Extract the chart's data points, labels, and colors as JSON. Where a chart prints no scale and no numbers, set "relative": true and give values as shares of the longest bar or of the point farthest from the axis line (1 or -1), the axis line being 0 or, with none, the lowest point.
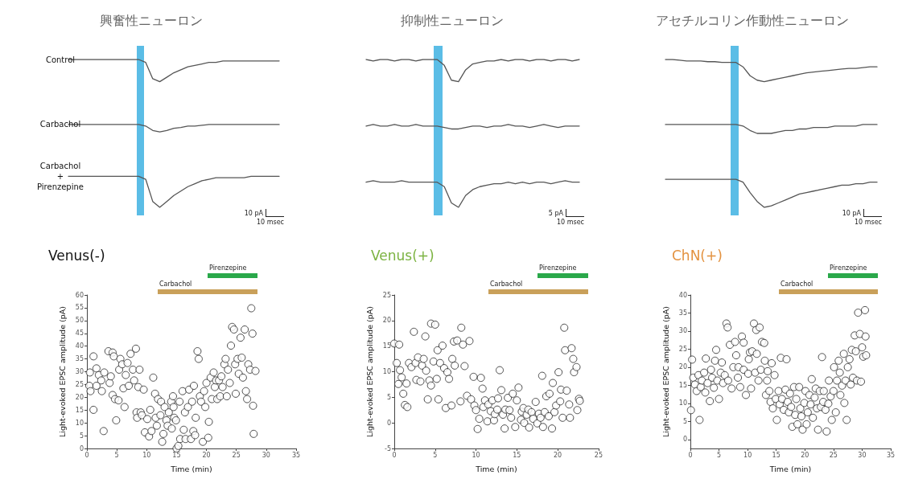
{
  "chart_data": [
    {
      "type": "line",
      "title": "興奮性ニューロン",
      "relative": true,
      "marker": "none",
      "categories": [
        null,
        null,
        null,
        null,
        null,
        null,
        null,
        null,
        null,
        null,
        null,
        null,
        null,
        null,
        null,
        null,
        null,
        null,
        null,
        null,
        null,
        null,
        null,
        null,
        null,
        null,
        null,
        null,
        null,
        null,
        null
      ],
      "annotations": [
        "10 pA",
        "10 msec"
      ],
      "series": [
        {
          "name": "Control",
          "color": "#555555",
          "values": [
            1,
            1,
            1,
            1,
            1,
            1,
            1,
            1,
            1,
            1,
            1,
            0.98,
            0.87,
            0.85,
            0.88,
            0.91,
            0.93,
            0.95,
            0.96,
            0.97,
            0.98,
            0.98,
            0.99,
            0.99,
            0.99,
            0.99,
            0.99,
            0.99,
            0.99,
            0.99,
            0.99
          ]
        },
        {
          "name": "Carbachol",
          "color": "#555555",
          "values": [
            0.56,
            0.56,
            0.56,
            0.56,
            0.56,
            0.56,
            0.56,
            0.56,
            0.56,
            0.56,
            0.56,
            0.55,
            0.52,
            0.51,
            0.52,
            0.535,
            0.54,
            0.55,
            0.55,
            0.555,
            0.56,
            0.56,
            0.56,
            0.56,
            0.56,
            0.56,
            0.56,
            0.56,
            0.56,
            0.56,
            0.56
          ]
        },
        {
          "name": "Carbachol + Pirenzepine",
          "color": "#555555",
          "values": [
            0.21,
            0.21,
            0.21,
            0.21,
            0.21,
            0.21,
            0.21,
            0.21,
            0.21,
            0.21,
            0.21,
            0.19,
            0.04,
            0,
            0.04,
            0.08,
            0.11,
            0.14,
            0.16,
            0.18,
            0.19,
            0.2,
            0.2,
            0.2,
            0.2,
            0.2,
            0.21,
            0.21,
            0.21,
            0.21,
            0.21
          ]
        }
      ]
    },
    {
      "type": "line",
      "title": "抑制性ニューロン",
      "relative": true,
      "marker": "none",
      "categories": [
        null,
        null,
        null,
        null,
        null,
        null,
        null,
        null,
        null,
        null,
        null,
        null,
        null,
        null,
        null,
        null,
        null,
        null,
        null,
        null,
        null,
        null,
        null,
        null,
        null,
        null,
        null,
        null,
        null,
        null,
        null
      ],
      "annotations": [
        "5 pA",
        "10 msec"
      ],
      "series": [
        {
          "color": "#555555",
          "values": [
            1,
            0.99,
            1,
            1,
            0.99,
            1,
            1,
            0.99,
            1,
            1,
            1,
            0.96,
            0.86,
            0.85,
            0.93,
            0.97,
            0.98,
            0.99,
            0.99,
            1,
            0.99,
            1,
            1,
            0.99,
            1,
            1,
            0.99,
            1,
            1,
            0.99,
            1
          ]
        },
        {
          "color": "#555555",
          "values": [
            0.55,
            0.56,
            0.55,
            0.55,
            0.56,
            0.55,
            0.55,
            0.56,
            0.55,
            0.55,
            0.55,
            0.54,
            0.53,
            0.53,
            0.54,
            0.55,
            0.55,
            0.54,
            0.55,
            0.55,
            0.56,
            0.55,
            0.55,
            0.54,
            0.55,
            0.56,
            0.55,
            0.54,
            0.55,
            0.55,
            0.55
          ]
        },
        {
          "color": "#555555",
          "values": [
            0.17,
            0.18,
            0.17,
            0.17,
            0.17,
            0.18,
            0.17,
            0.17,
            0.17,
            0.17,
            0.17,
            0.14,
            0.03,
            0,
            0.08,
            0.12,
            0.14,
            0.15,
            0.16,
            0.16,
            0.17,
            0.16,
            0.17,
            0.16,
            0.17,
            0.17,
            0.16,
            0.17,
            0.18,
            0.17,
            0.17
          ]
        }
      ]
    },
    {
      "type": "line",
      "title": "アセチルコリン作動性ニューロン",
      "relative": true,
      "marker": "none",
      "categories": [
        null,
        null,
        null,
        null,
        null,
        null,
        null,
        null,
        null,
        null,
        null,
        null,
        null,
        null,
        null,
        null,
        null,
        null,
        null,
        null,
        null,
        null,
        null,
        null,
        null,
        null,
        null,
        null,
        null,
        null,
        null
      ],
      "annotations": [
        "10 pA",
        "10 msec"
      ],
      "series": [
        {
          "color": "#555555",
          "values": [
            1,
            1,
            0.995,
            0.99,
            0.99,
            0.99,
            0.985,
            0.985,
            0.98,
            0.98,
            0.98,
            0.95,
            0.89,
            0.86,
            0.85,
            0.86,
            0.87,
            0.88,
            0.89,
            0.9,
            0.91,
            0.915,
            0.92,
            0.925,
            0.93,
            0.935,
            0.94,
            0.94,
            0.945,
            0.95,
            0.95
          ]
        },
        {
          "color": "#555555",
          "values": [
            0.56,
            0.56,
            0.56,
            0.56,
            0.56,
            0.56,
            0.56,
            0.56,
            0.56,
            0.56,
            0.56,
            0.55,
            0.52,
            0.5,
            0.5,
            0.5,
            0.51,
            0.52,
            0.52,
            0.53,
            0.53,
            0.54,
            0.54,
            0.54,
            0.55,
            0.55,
            0.55,
            0.55,
            0.56,
            0.56,
            0.56
          ]
        },
        {
          "color": "#555555",
          "values": [
            0.19,
            0.19,
            0.19,
            0.19,
            0.19,
            0.19,
            0.19,
            0.19,
            0.19,
            0.19,
            0.19,
            0.17,
            0.1,
            0.04,
            0,
            0.01,
            0.03,
            0.05,
            0.07,
            0.09,
            0.1,
            0.11,
            0.12,
            0.13,
            0.14,
            0.15,
            0.15,
            0.16,
            0.16,
            0.17,
            0.17
          ]
        }
      ]
    },
    {
      "type": "scatter",
      "title": "Venus(-)",
      "xlabel": "Time (min)",
      "ylabel": "Light-evoked EPSC amplitude (pA)",
      "marker": "circle",
      "xlim": [
        0,
        35
      ],
      "xticks": [
        0,
        5,
        10,
        15,
        20,
        25,
        30,
        35
      ],
      "ylim": [
        0,
        60
      ],
      "yticks": [
        0,
        5,
        10,
        15,
        20,
        25,
        30,
        35,
        40,
        45,
        50,
        55,
        60
      ],
      "annotations": [
        "Carbachol",
        "Pirenzepine"
      ],
      "series": [
        {
          "color": "#222222",
          "x": [
            0.5,
            0.4,
            0.6,
            1.1,
            1.1,
            1.6,
            1.6,
            2,
            2.4,
            2.5,
            2.8,
            2.9,
            3.6,
            3.8,
            4,
            4.3,
            4.3,
            4.5,
            4.7,
            4.9,
            5.4,
            5.3,
            5.6,
            5.9,
            6.1,
            6.3,
            6.5,
            6.8,
            7,
            7.3,
            7.7,
            7.9,
            8.2,
            8.3,
            8.4,
            8.6,
            8.8,
            9,
            9.2,
            9.5,
            9.7,
            10.1,
            10.4,
            10.6,
            10.8,
            11.1,
            11.4,
            11.5,
            11.7,
            11.9,
            12.3,
            12.4,
            12.6,
            12.8,
            13,
            13.3,
            13.5,
            13.7,
            14.1,
            14.2,
            14.4,
            14.5,
            14.6,
            14.9,
            15,
            15.3,
            15.5,
            15.6,
            16,
            16.2,
            16.4,
            16.5,
            16.9,
            17.1,
            17.4,
            17.6,
            17.8,
            17.9,
            18.1,
            18.2,
            18.5,
            18.7,
            18.9,
            19.1,
            19.4,
            19.6,
            19.8,
            20,
            20.3,
            20.4,
            20.7,
            20.9,
            21.2,
            21.4,
            21.6,
            21.8,
            22.1,
            22.3,
            22.5,
            22.7,
            23,
            23.2,
            23.4,
            23.6,
            23.9,
            24.1,
            24.3,
            24.6,
            24.8,
            24.9,
            25.2,
            25.4,
            25.7,
            25.9,
            26.1,
            26.4,
            26.6,
            26.8,
            27,
            27.3,
            27.5,
            27.7,
            27.8,
            27.9,
            28.2
          ],
          "values": [
            29.7,
            24.5,
            22.4,
            36,
            15.1,
            31.3,
            24.5,
            28.7,
            26.6,
            22.4,
            6.8,
            29.7,
            38,
            25.6,
            28.2,
            37.5,
            20.9,
            36,
            19.3,
            11,
            30.8,
            18.8,
            35,
            32.9,
            23.5,
            16.2,
            28.7,
            33.4,
            24.5,
            37,
            30.8,
            26.6,
            39,
            14.1,
            12,
            24,
            30.8,
            14.1,
            13,
            23,
            6.3,
            11.5,
            4.7,
            15.1,
            6.8,
            27.7,
            21.4,
            12,
            8.9,
            19.3,
            13,
            18.3,
            2.6,
            5.7,
            16.2,
            11,
            8.9,
            14.1,
            18.3,
            7.8,
            20.4,
            16.2,
            12,
            11,
            0,
            1,
            18.3,
            3.7,
            22.4,
            7.3,
            14.1,
            3.7,
            16.2,
            23,
            3.7,
            18.3,
            6.8,
            24.5,
            5.2,
            12,
            38,
            35,
            20.4,
            18.3,
            2.6,
            22.4,
            16.2,
            25.6,
            4.2,
            10.4,
            27.7,
            19.3,
            29.7,
            24,
            26.6,
            19.3,
            26.6,
            20.4,
            28.2,
            24,
            32.9,
            35,
            20.4,
            30.8,
            25.6,
            40.2,
            47.5,
            46.5,
            32.9,
            21.4,
            35,
            29.2,
            43.3,
            35.5,
            27.7,
            46.5,
            22.4,
            19.3,
            32.9,
            30.8,
            54.8,
            44.9,
            16.7,
            5.7,
            30.3
          ]
        }
      ]
    },
    {
      "type": "scatter",
      "title": "Venus(+)",
      "xlabel": "Time (min)",
      "ylabel": "Light-evoked EPSC amplitude (pA)",
      "marker": "circle",
      "xlim": [
        0,
        25
      ],
      "xticks": [
        0,
        5,
        10,
        15,
        20,
        25
      ],
      "ylim": [
        -5,
        25
      ],
      "yticks": [
        -5,
        0,
        5,
        10,
        15,
        20,
        25
      ],
      "annotations": [
        "Carbachol",
        "Pirenzepine"
      ],
      "series": [
        {
          "color": "#222222",
          "x": [
            0,
            0.3,
            0.6,
            0.7,
            0.5,
            0.9,
            1.1,
            1.3,
            1.5,
            1.6,
            1.8,
            2.1,
            2.4,
            2.6,
            2.7,
            2.9,
            3.2,
            3.4,
            3.6,
            3.8,
            3.9,
            4.1,
            4.3,
            4.5,
            4.5,
            4.8,
            5,
            5.2,
            5.3,
            5.4,
            5.6,
            5.9,
            6.1,
            6.3,
            6.5,
            6.7,
            7,
            7.1,
            7.3,
            7.4,
            7.7,
            8.1,
            8.2,
            8.4,
            8.6,
            8.9,
            9.2,
            9.4,
            9.7,
            9.8,
            10,
            10.2,
            10.4,
            10.6,
            10.8,
            10.9,
            11.1,
            11.4,
            11.5,
            11.8,
            12,
            12.2,
            12.3,
            12.6,
            12.7,
            12.9,
            13.1,
            13.3,
            13.5,
            13.6,
            13.9,
            14.1,
            14.3,
            14.5,
            14.8,
            15,
            15.2,
            15.5,
            15.6,
            15.8,
            15.9,
            16.2,
            16.4,
            16.5,
            16.8,
            17,
            17.3,
            17.5,
            17.7,
            17.9,
            18.1,
            18.2,
            18.4,
            18.6,
            18.9,
            19,
            19.3,
            19.4,
            19.6,
            19.8,
            20.1,
            20.3,
            20.4,
            20.6,
            20.8,
            20.9,
            21.1,
            21.4,
            21.5,
            21.7,
            21.9,
            22,
            22.3,
            22.4,
            22.6,
            22.7
          ],
          "values": [
            15.5,
            11.7,
            15.3,
            10.3,
            7.6,
            8.9,
            5.7,
            3.5,
            7.7,
            3.1,
            11.7,
            10.9,
            17.8,
            11.7,
            8.4,
            12.8,
            8.1,
            11.2,
            12.5,
            16.9,
            10.2,
            4.6,
            8.3,
            19.4,
            7.3,
            12,
            19.2,
            8.6,
            14.2,
            4.6,
            11.7,
            15.1,
            10.7,
            2.9,
            9.9,
            8.6,
            3.4,
            12.5,
            15.9,
            11.2,
            16.1,
            4.2,
            18.6,
            15.3,
            11.1,
            5.3,
            16,
            4.6,
            9,
            3.4,
            2.5,
            -1.2,
            0.8,
            8.8,
            6.7,
            3.1,
            4.4,
            0.3,
            3.6,
            2.3,
            4.4,
            0.5,
            1.7,
            2.6,
            4.8,
            10.3,
            6.4,
            1.6,
            -1.1,
            2.6,
            4.9,
            2.5,
            1,
            5.7,
            -0.8,
            4.4,
            6.9,
            0.6,
            2.2,
            2.9,
            0,
            1.6,
            2.6,
            -0.9,
            2.1,
            0.8,
            4.1,
            -0.1,
            1.8,
            1,
            9.2,
            -0.8,
            2.1,
            5.2,
            1.3,
            5.7,
            -1.1,
            7.8,
            2.1,
            3.4,
            9.9,
            4.2,
            6.5,
            1,
            18.6,
            14.2,
            6.3,
            3.6,
            1,
            14.6,
            12.5,
            9.9,
            10.9,
            2.5,
            4.7,
            4.3
          ]
        }
      ]
    },
    {
      "type": "scatter",
      "title": "ChN(+)",
      "xlabel": "Time (min)",
      "ylabel": "Light-evoked EPSC amplitude (pA)",
      "marker": "circle",
      "xlim": [
        0,
        35
      ],
      "xticks": [
        0,
        5,
        10,
        15,
        20,
        25,
        30,
        35
      ],
      "ylim": [
        -2.5,
        40
      ],
      "yticks": [
        0,
        5,
        10,
        15,
        20,
        25,
        30,
        35,
        40
      ],
      "annotations": [
        "Carbachol",
        "Pirenzepine"
      ],
      "series": [
        {
          "color": "#222222",
          "x": [
            0.1,
            0.3,
            0.5,
            0.8,
            1.1,
            1.4,
            1.6,
            1.8,
            2,
            2.4,
            2.6,
            2.7,
            3,
            3.4,
            3.6,
            3.8,
            4.1,
            4.3,
            4.5,
            4.7,
            5,
            5.3,
            5.5,
            5.7,
            6,
            6.3,
            6.5,
            6.6,
            6.9,
            7.2,
            7.5,
            7.8,
            8,
            8.3,
            8.4,
            8.7,
            9,
            9.3,
            9.3,
            9.7,
            10.1,
            10.2,
            10.4,
            10.6,
            10.8,
            11.1,
            11.3,
            11.5,
            11.6,
            11.9,
            12.1,
            12.3,
            12.5,
            12.9,
            13,
            13.2,
            13.4,
            13.5,
            13.8,
            14,
            14.2,
            14.4,
            14.7,
            14.9,
            15.1,
            15.4,
            15.6,
            15.8,
            16,
            16.3,
            16.6,
            16.8,
            17,
            17.2,
            17.4,
            17.6,
            17.8,
            18.1,
            18.3,
            18.5,
            18.7,
            19,
            19.2,
            19.4,
            19.6,
            19.9,
            20.1,
            20.3,
            20.5,
            20.8,
            21,
            21.2,
            21.4,
            21.7,
            21.9,
            22.1,
            22.3,
            22.6,
            22.8,
            23,
            23.2,
            23.3,
            23.6,
            23.8,
            24.1,
            24.2,
            24.5,
            24.7,
            25,
            25.1,
            25.4,
            25.6,
            25.9,
            26.1,
            26.2,
            26.5,
            26.8,
            26.9,
            27.1,
            27.3,
            27.5,
            27.8,
            28,
            28.2,
            28.4,
            28.7,
            28.9,
            29.1,
            29.3,
            29.6,
            29.8,
            30,
            30.2,
            30.5,
            30.6,
            30.7
          ],
          "values": [
            8.1,
            22.1,
            17.1,
            15.2,
            13.4,
            17.8,
            5.4,
            14.5,
            16.3,
            18.5,
            13,
            22.4,
            15.6,
            10.6,
            19.3,
            17.1,
            14.3,
            21.8,
            24.8,
            16.3,
            11.2,
            18.5,
            21.3,
            15.6,
            17.8,
            32.1,
            31,
            16.3,
            26.2,
            14.1,
            20,
            27,
            23.3,
            17.1,
            20,
            14.5,
            28.5,
            26.8,
            19.3,
            12.3,
            18.2,
            22.2,
            24.1,
            14.1,
            24.4,
            32.1,
            18.5,
            30.3,
            23.7,
            16.3,
            31,
            19.3,
            27,
            26.7,
            21.8,
            12.3,
            16.3,
            18.9,
            13.4,
            10.4,
            21.1,
            8.6,
            17.8,
            11.2,
            5.4,
            13.4,
            9.7,
            22.6,
            11.2,
            8.2,
            13.8,
            22.2,
            10.4,
            7.5,
            12.7,
            9,
            3.5,
            14.5,
            6.8,
            11.2,
            4.2,
            14.5,
            8.6,
            6.4,
            2.7,
            10.1,
            13.4,
            4.2,
            7.5,
            12.3,
            9.7,
            16.7,
            6,
            11.6,
            14.1,
            8.6,
            2.7,
            13.4,
            9,
            22.8,
            10.4,
            13.4,
            8.2,
            2.2,
            9.9,
            16.3,
            11.9,
            5.4,
            13.4,
            20,
            7.5,
            16.3,
            21.8,
            18.5,
            12.3,
            14.9,
            23.7,
            10.1,
            16.3,
            5.4,
            20,
            22.2,
            15.2,
            24.8,
            17.1,
            28.8,
            24.4,
            16.3,
            35.1,
            29.2,
            16,
            25.5,
            22.9,
            35.8,
            28.5,
            23.3
          ]
        }
      ]
    }
  ]
}
